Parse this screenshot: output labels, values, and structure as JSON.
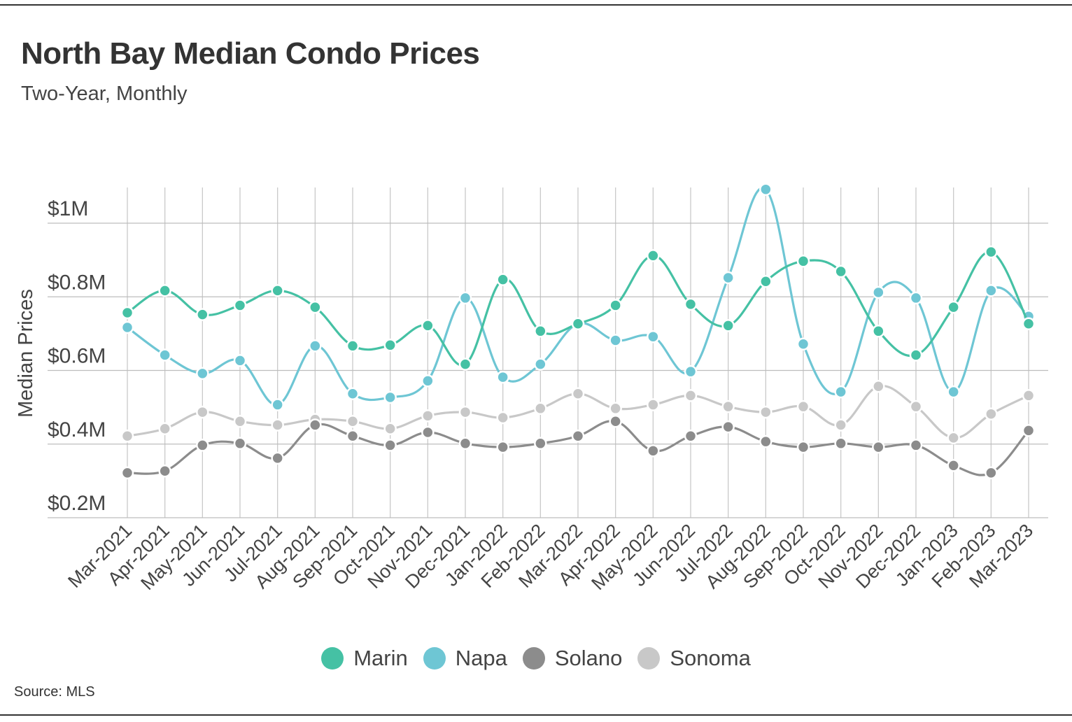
{
  "title": "North Bay Median Condo Prices",
  "subtitle": "Two-Year, Monthly",
  "source": "Source:  MLS",
  "chart_data": {
    "type": "line",
    "title": "North Bay Median Condo Prices",
    "subtitle": "Two-Year, Monthly",
    "xlabel": "",
    "ylabel": "Median Prices",
    "ylim": [
      0.2,
      1.1
    ],
    "yticks": [
      0.2,
      0.4,
      0.6,
      0.8,
      1.0
    ],
    "ytick_labels": [
      "$0.2M",
      "$0.4M",
      "$0.6M",
      "$0.8M",
      "$1M"
    ],
    "grid": true,
    "legend": "bottom-center",
    "categories": [
      "Mar-2021",
      "Apr-2021",
      "May-2021",
      "Jun-2021",
      "Jul-2021",
      "Aug-2021",
      "Sep-2021",
      "Oct-2021",
      "Nov-2021",
      "Dec-2021",
      "Jan-2022",
      "Feb-2022",
      "Mar-2022",
      "Apr-2022",
      "May-2022",
      "Jun-2022",
      "Jul-2022",
      "Aug-2022",
      "Sep-2022",
      "Oct-2022",
      "Nov-2022",
      "Dec-2022",
      "Jan-2023",
      "Feb-2023",
      "Mar-2023"
    ],
    "series": [
      {
        "name": "Marin",
        "color": "#45c1a4",
        "values": [
          0.715,
          0.775,
          0.71,
          0.735,
          0.775,
          0.73,
          0.625,
          0.627,
          0.68,
          0.575,
          0.805,
          0.665,
          0.685,
          0.735,
          0.87,
          0.738,
          0.68,
          0.8,
          0.855,
          0.827,
          0.665,
          0.6,
          0.73,
          0.88,
          0.685
        ]
      },
      {
        "name": "Napa",
        "color": "#6ec6d4",
        "values": [
          0.675,
          0.6,
          0.55,
          0.585,
          0.465,
          0.625,
          0.495,
          0.485,
          0.53,
          0.755,
          0.54,
          0.575,
          0.685,
          0.64,
          0.65,
          0.555,
          0.81,
          1.05,
          0.63,
          0.5,
          0.77,
          0.755,
          0.5,
          0.775,
          0.705
        ]
      },
      {
        "name": "Solano",
        "color": "#8c8c8c",
        "values": [
          0.28,
          0.285,
          0.355,
          0.36,
          0.32,
          0.41,
          0.38,
          0.355,
          0.39,
          0.36,
          0.35,
          0.36,
          0.38,
          0.42,
          0.34,
          0.38,
          0.405,
          0.365,
          0.35,
          0.36,
          0.35,
          0.355,
          0.3,
          0.28,
          0.395
        ]
      },
      {
        "name": "Sonoma",
        "color": "#c8c8c8",
        "values": [
          0.38,
          0.4,
          0.445,
          0.42,
          0.41,
          0.425,
          0.42,
          0.4,
          0.435,
          0.445,
          0.43,
          0.455,
          0.495,
          0.455,
          0.465,
          0.49,
          0.46,
          0.445,
          0.46,
          0.41,
          0.515,
          0.46,
          0.375,
          0.44,
          0.49
        ]
      }
    ]
  }
}
